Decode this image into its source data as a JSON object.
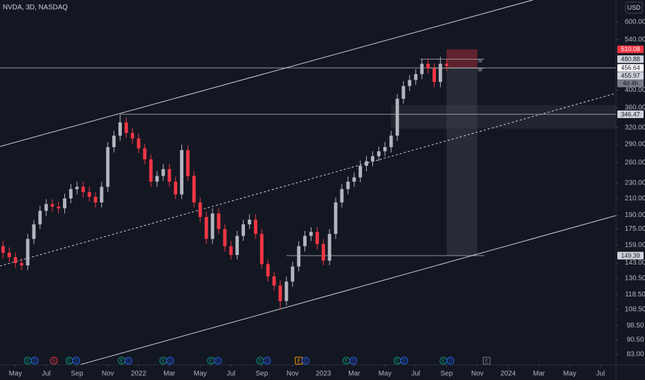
{
  "chart_data": {
    "type": "candlestick",
    "title": "NVDA, 3D, NASDAQ",
    "currency": "USD",
    "log_scale": true,
    "up_color": "#b2b5be",
    "down_color": "#f23645",
    "xlim": [
      -1,
      39
    ],
    "xticks": [
      {
        "value": 0,
        "label": "May"
      },
      {
        "value": 2,
        "label": "Jul"
      },
      {
        "value": 4,
        "label": "Sep"
      },
      {
        "value": 6,
        "label": "Nov"
      },
      {
        "value": 8,
        "label": "2022"
      },
      {
        "value": 10,
        "label": "Mar"
      },
      {
        "value": 12,
        "label": "May"
      },
      {
        "value": 14,
        "label": "Jul"
      },
      {
        "value": 16,
        "label": "Sep"
      },
      {
        "value": 18,
        "label": "Nov"
      },
      {
        "value": 20,
        "label": "2023"
      },
      {
        "value": 22,
        "label": "Mar"
      },
      {
        "value": 24,
        "label": "May"
      },
      {
        "value": 26,
        "label": "Jul"
      },
      {
        "value": 28,
        "label": "Sep"
      },
      {
        "value": 30,
        "label": "Nov"
      },
      {
        "value": 32,
        "label": "2024"
      },
      {
        "value": 34,
        "label": "Mar"
      },
      {
        "value": 36,
        "label": "May"
      },
      {
        "value": 38,
        "label": "Jul"
      }
    ],
    "ylim": [
      78,
      684
    ],
    "yticks": [
      {
        "value": 600,
        "label": "600.00"
      },
      {
        "value": 540,
        "label": "540.00"
      },
      {
        "value": 400,
        "label": "400.00"
      },
      {
        "value": 360,
        "label": "360.00"
      },
      {
        "value": 320,
        "label": "320.00"
      },
      {
        "value": 290,
        "label": "290.00"
      },
      {
        "value": 260,
        "label": "260.00"
      },
      {
        "value": 230,
        "label": "230.00"
      },
      {
        "value": 210,
        "label": "210.00"
      },
      {
        "value": 190,
        "label": "190.00"
      },
      {
        "value": 175,
        "label": "175.00"
      },
      {
        "value": 159,
        "label": "159.00"
      },
      {
        "value": 143,
        "label": "143.00"
      },
      {
        "value": 130.5,
        "label": "130.50"
      },
      {
        "value": 118.5,
        "label": "118.50"
      },
      {
        "value": 108.5,
        "label": "108.50"
      },
      {
        "value": 98.5,
        "label": "98.50"
      },
      {
        "value": 90.5,
        "label": "90.50"
      },
      {
        "value": 83,
        "label": "83.00"
      }
    ],
    "levels": [
      510.08,
      480.88,
      456.64,
      455.97,
      346.47,
      149.39
    ],
    "level_colors": [
      "#f23645",
      "#d1d4dc",
      "#ffffff",
      "#d1d4dc",
      "#d1d4dc",
      "#d1d4dc"
    ],
    "level_tags": [
      "M",
      "W"
    ],
    "countdown": "4d 4h",
    "position_x": [
      28,
      30
    ],
    "x": [
      -0.8,
      -0.4,
      0,
      0.4,
      0.8,
      1.2,
      1.6,
      2,
      2.4,
      2.8,
      3.2,
      3.6,
      4,
      4.4,
      4.8,
      5.2,
      5.6,
      6,
      6.4,
      6.8,
      7.2,
      7.6,
      8,
      8.4,
      8.8,
      9.2,
      9.6,
      10,
      10.4,
      10.8,
      11.2,
      11.6,
      12,
      12.4,
      12.8,
      13.2,
      13.6,
      14,
      14.4,
      14.8,
      15.2,
      15.6,
      16,
      16.4,
      16.8,
      17.2,
      17.6,
      18,
      18.4,
      18.8,
      19.2,
      19.6,
      20,
      20.4,
      20.8,
      21.2,
      21.6,
      22,
      22.4,
      22.8,
      23.2,
      23.6,
      24,
      24.4,
      24.8,
      25.2,
      25.6,
      26,
      26.4,
      26.8,
      27.2,
      27.6,
      28
    ],
    "open": [
      158,
      152,
      148,
      143,
      141,
      165,
      180,
      195,
      203,
      200,
      198,
      210,
      222,
      225,
      218,
      212,
      205,
      225,
      285,
      305,
      330,
      310,
      300,
      283,
      265,
      232,
      240,
      250,
      232,
      215,
      280,
      240,
      205,
      188,
      165,
      192,
      175,
      158,
      150,
      168,
      180,
      185,
      170,
      142,
      132,
      125,
      114,
      128,
      140,
      158,
      168,
      172,
      160,
      145,
      170,
      205,
      222,
      232,
      238,
      255,
      262,
      270,
      278,
      285,
      305,
      380,
      410,
      425,
      440,
      468,
      455,
      420,
      468
    ],
    "high": [
      163,
      157,
      152,
      147,
      170,
      185,
      201,
      209,
      209,
      206,
      216,
      229,
      232,
      232,
      225,
      218,
      232,
      294,
      314,
      346,
      340,
      319,
      309,
      291,
      273,
      247,
      258,
      258,
      239,
      289,
      288,
      247,
      211,
      194,
      198,
      198,
      180,
      163,
      173,
      185,
      191,
      191,
      175,
      146,
      136,
      129,
      132,
      144,
      163,
      173,
      177,
      177,
      165,
      175,
      211,
      229,
      239,
      245,
      263,
      270,
      278,
      286,
      294,
      314,
      391,
      422,
      438,
      453,
      482,
      482,
      469,
      488,
      482
    ],
    "low": [
      147,
      144,
      139,
      137,
      137,
      160,
      175,
      189,
      194,
      192,
      192,
      204,
      215,
      211,
      206,
      199,
      199,
      218,
      276,
      296,
      301,
      291,
      275,
      257,
      225,
      225,
      233,
      225,
      209,
      209,
      233,
      199,
      182,
      160,
      160,
      170,
      153,
      146,
      146,
      163,
      175,
      165,
      138,
      128,
      121,
      108.5,
      111,
      124,
      136,
      153,
      163,
      155,
      141,
      141,
      165,
      199,
      215,
      225,
      231,
      247,
      254,
      262,
      270,
      276,
      296,
      369,
      398,
      412,
      427,
      441,
      407,
      407,
      448
    ],
    "close": [
      152,
      148,
      143,
      141,
      165,
      180,
      195,
      203,
      200,
      198,
      210,
      222,
      225,
      218,
      212,
      205,
      225,
      285,
      305,
      330,
      310,
      300,
      283,
      265,
      232,
      240,
      250,
      232,
      215,
      280,
      240,
      205,
      188,
      165,
      192,
      175,
      158,
      150,
      168,
      180,
      185,
      170,
      142,
      132,
      125,
      114,
      128,
      140,
      158,
      168,
      172,
      160,
      145,
      170,
      205,
      222,
      232,
      238,
      255,
      262,
      270,
      278,
      285,
      305,
      380,
      410,
      425,
      440,
      468,
      455,
      420,
      468,
      462
    ],
    "events": [
      {
        "x": 0.8,
        "icons": [
          "E",
          "D"
        ]
      },
      {
        "x": 2.5,
        "icons": [
          "S"
        ]
      },
      {
        "x": 3.5,
        "icons": [
          "E",
          "D"
        ]
      },
      {
        "x": 6.9,
        "icons": [
          "E",
          "D"
        ]
      },
      {
        "x": 9.6,
        "icons": [
          "E",
          "D"
        ]
      },
      {
        "x": 12.7,
        "icons": [
          "E",
          "D"
        ]
      },
      {
        "x": 15.9,
        "icons": [
          "E",
          "D"
        ]
      },
      {
        "x": 18.4,
        "icons": [
          "E",
          "D"
        ]
      },
      {
        "x": 21.5,
        "icons": [
          "E",
          "D"
        ]
      },
      {
        "x": 24.8,
        "icons": [
          "E",
          "D"
        ]
      },
      {
        "x": 27.8,
        "icons": [
          "E",
          "D"
        ]
      },
      {
        "x": 30.6,
        "icons": [
          "E"
        ]
      }
    ]
  }
}
